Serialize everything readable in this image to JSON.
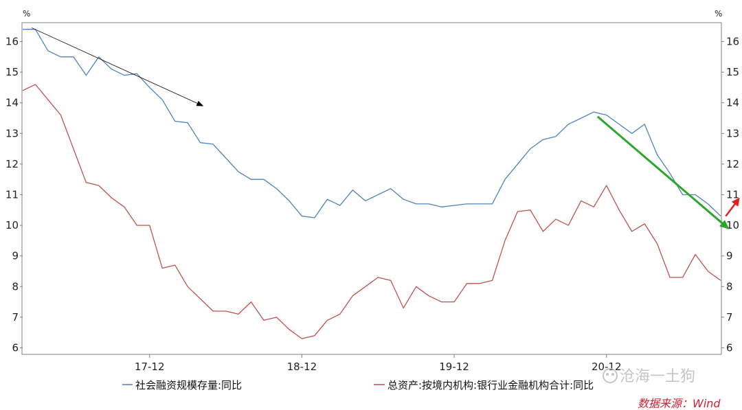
{
  "chart_data": {
    "type": "line",
    "unit_left": "%",
    "unit_right": "%",
    "ylim": [
      6,
      16
    ],
    "y_ticks": [
      6,
      7,
      8,
      9,
      10,
      11,
      12,
      13,
      14,
      15,
      16
    ],
    "x_tick_labels": [
      {
        "label": "17-12",
        "index": 10
      },
      {
        "label": "18-12",
        "index": 22
      },
      {
        "label": "19-12",
        "index": 34
      },
      {
        "label": "20-12",
        "index": 46
      }
    ],
    "series": [
      {
        "name": "社会融资规模存量:同比",
        "color": "#4f81bd",
        "values": [
          16.4,
          16.4,
          15.7,
          15.5,
          15.5,
          14.9,
          15.5,
          15.1,
          14.9,
          14.95,
          14.5,
          14.1,
          13.4,
          13.35,
          12.7,
          12.65,
          12.2,
          11.75,
          11.5,
          11.5,
          11.2,
          10.8,
          10.3,
          10.25,
          10.85,
          10.65,
          11.15,
          10.8,
          11.0,
          11.2,
          10.85,
          10.7,
          10.7,
          10.6,
          10.65,
          10.7,
          10.7,
          10.7,
          11.5,
          12.0,
          12.5,
          12.8,
          12.9,
          13.3,
          13.5,
          13.7,
          13.6,
          13.3,
          13.0,
          13.3,
          12.3,
          11.7,
          11.0,
          11.0,
          10.7,
          10.3
        ]
      },
      {
        "name": "总资产:按境内机构:银行业金融机构合计:同比",
        "color": "#c0504d",
        "values": [
          14.4,
          14.6,
          14.1,
          13.6,
          12.5,
          11.4,
          11.3,
          10.9,
          10.6,
          10.0,
          10.0,
          8.6,
          8.7,
          8.0,
          7.6,
          7.2,
          7.2,
          7.1,
          7.5,
          6.9,
          7.0,
          6.6,
          6.3,
          6.4,
          6.9,
          7.1,
          7.7,
          8.0,
          8.3,
          8.2,
          7.3,
          8.0,
          7.7,
          7.5,
          7.5,
          8.1,
          8.1,
          8.2,
          9.5,
          10.45,
          10.5,
          9.8,
          10.2,
          10.0,
          10.8,
          10.6,
          11.3,
          10.5,
          9.8,
          10.05,
          9.4,
          8.3,
          8.3,
          9.05,
          8.5,
          8.2
        ]
      }
    ],
    "annotations": [
      {
        "type": "arrow",
        "color": "#000000",
        "from": [
          0.7,
          16.45
        ],
        "to": [
          14.2,
          13.9
        ]
      },
      {
        "type": "arrow",
        "color": "#2aa62a",
        "from": [
          45.3,
          13.55
        ],
        "to": [
          55.6,
          9.9
        ]
      },
      {
        "type": "arrow",
        "color": "#e02020",
        "from": [
          55.4,
          10.3
        ],
        "to": [
          56.4,
          10.85
        ]
      }
    ],
    "source": "数据来源：Wind",
    "watermark": "沧海一土狗"
  }
}
